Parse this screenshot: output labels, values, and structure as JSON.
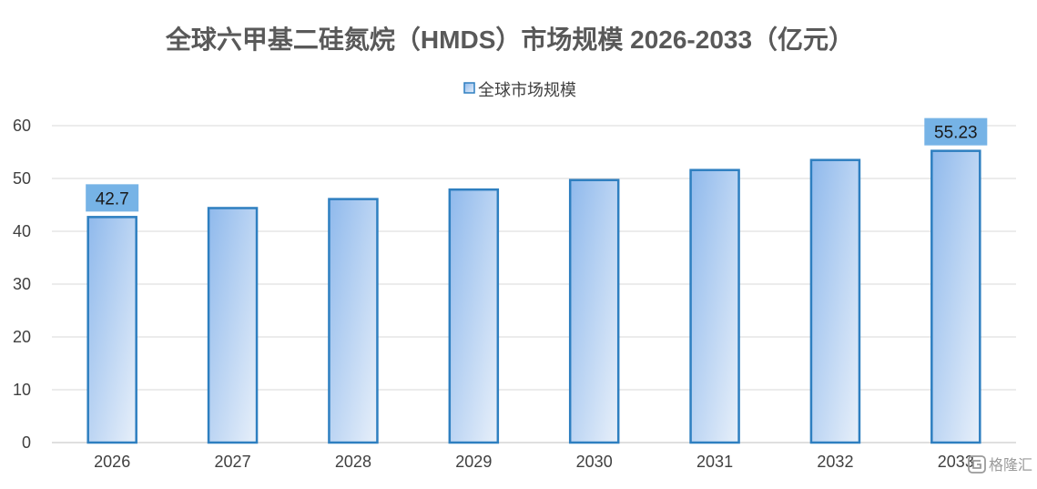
{
  "chart_data": {
    "type": "bar",
    "title": "全球六甲基二硅氮烷（HMDS）市场规模 2026-2033（亿元）",
    "categories": [
      "2026",
      "2027",
      "2028",
      "2029",
      "2030",
      "2031",
      "2032",
      "2033"
    ],
    "series": [
      {
        "name": "全球市场规模",
        "values": [
          42.7,
          44.4,
          46.1,
          47.9,
          49.7,
          51.6,
          53.5,
          55.23
        ]
      }
    ],
    "data_labels": [
      {
        "category": "2026",
        "text": "42.7"
      },
      {
        "category": "2033",
        "text": "55.23"
      }
    ],
    "ylim": [
      0,
      60
    ],
    "y_ticks": [
      0,
      10,
      20,
      30,
      40,
      50,
      60
    ],
    "xlabel": "",
    "ylabel": "",
    "grid": true,
    "legend_position": "top-center",
    "colors": {
      "bar_fill_start": "#8fb9ec",
      "bar_fill_end": "#e8f0fa",
      "bar_stroke": "#2e7fc0",
      "label_box": "#76b3e6",
      "gridline": "#d9d9d9",
      "axis_line": "#bfbfbf"
    }
  },
  "watermark": {
    "text": "格隆汇",
    "icon": "glh-logo-icon"
  }
}
